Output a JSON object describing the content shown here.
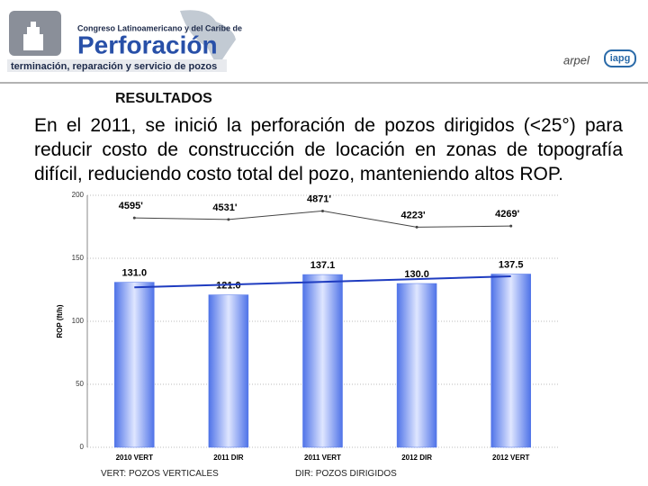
{
  "header": {
    "congress": "Congreso Latinoamericano y del Caribe de",
    "title": "Perforación",
    "subtitle": "terminación, reparación y servicio de pozos",
    "logo_1": "arpel",
    "logo_2": "iapg"
  },
  "section": "RESULTADOS",
  "paragraph": "En el 2011, se inició la perforación de pozos dirigidos (<25°) para reducir costo de construcción de locación en zonas de topografía difícil, reduciendo costo total del pozo, manteniendo altos ROP.",
  "chart_data": {
    "type": "bar",
    "y_label": "ROP (ft/h)",
    "categories": [
      "2010 VERT",
      "2011 DIR",
      "2011 VERT",
      "2012 DIR",
      "2012 VERT"
    ],
    "series": [
      {
        "type": "bar",
        "color": "#4f73e8",
        "values": [
          131.0,
          121.0,
          137.1,
          130.0,
          137.5
        ],
        "value_labels": [
          "131.0",
          "121.0",
          "137.1",
          "130.0",
          "137.5"
        ]
      },
      {
        "type": "line",
        "axis": "y2",
        "color": "#444444",
        "values": [
          4595,
          4531,
          4871,
          4223,
          4269
        ],
        "value_labels": [
          "4595'",
          "4531'",
          "4871'",
          "4223'",
          "4269'"
        ]
      }
    ],
    "trendline": true,
    "trend_color": "#1f3cc0",
    "ylim": [
      0,
      200
    ],
    "yticks": [
      0,
      50,
      100,
      150,
      200
    ],
    "y2lim": [
      -4600,
      5500
    ],
    "grid": true
  },
  "notes": [
    "VERT: POZOS VERTICALES",
    "DIR: POZOS DIRIGIDOS"
  ]
}
